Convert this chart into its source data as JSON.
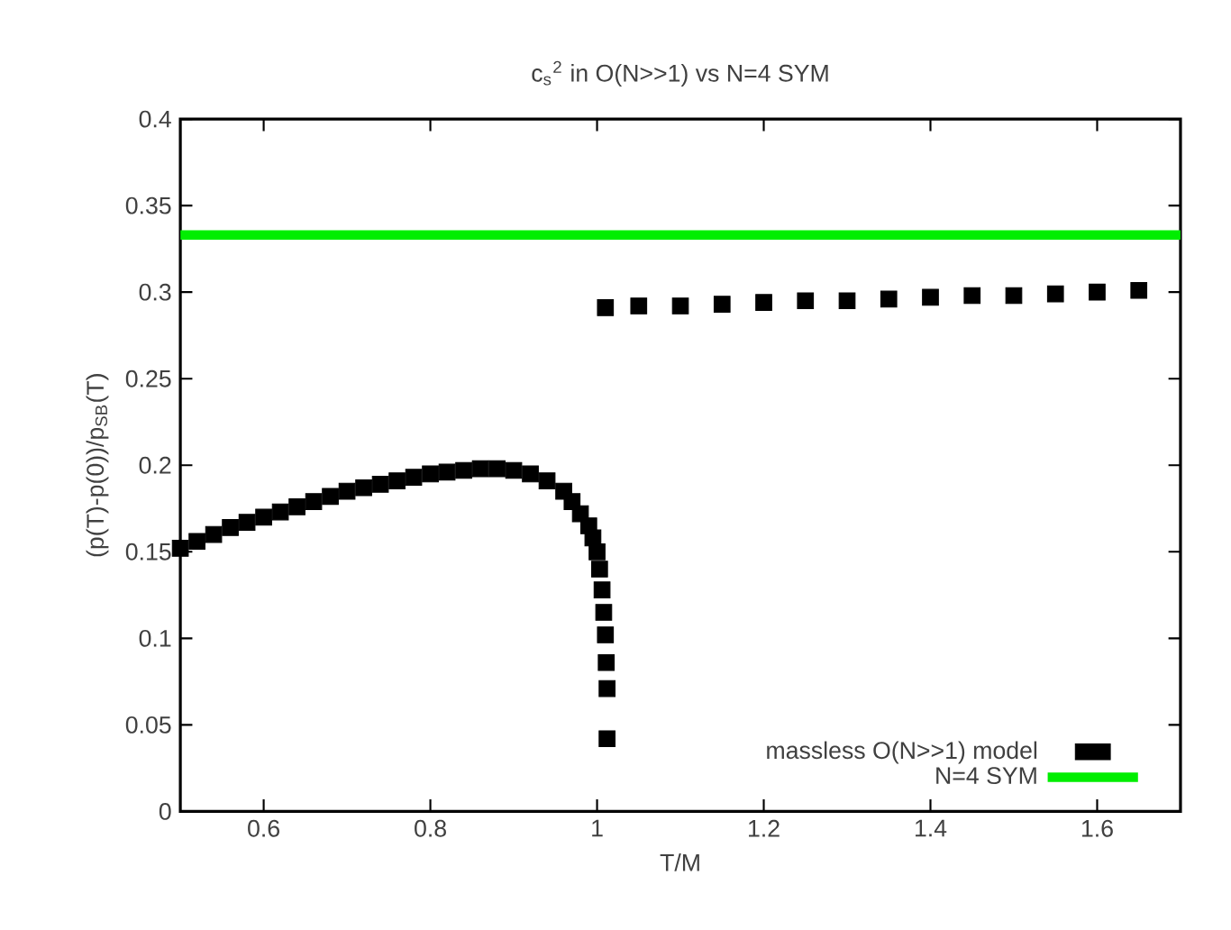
{
  "chart_data": {
    "type": "scatter",
    "title": "c$_{s}$$^{2}$ in O(N>>1) vs N=4 SYM",
    "xlabel": "T/M",
    "ylabel": "(p(T)-p(0))/p$_{SB}$(T)",
    "xlim": [
      0.5,
      1.7
    ],
    "ylim": [
      0,
      0.4
    ],
    "xticks": [
      0.6,
      0.8,
      1,
      1.2,
      1.4,
      1.6
    ],
    "yticks": [
      0,
      0.05,
      0.1,
      0.15,
      0.2,
      0.25,
      0.3,
      0.35,
      0.4
    ],
    "legend": "bottom right",
    "series": [
      {
        "name": "massless O(N>>1) model",
        "marker": "square",
        "color": "#000000",
        "x": [
          0.5,
          0.52,
          0.54,
          0.56,
          0.58,
          0.6,
          0.62,
          0.64,
          0.66,
          0.68,
          0.7,
          0.72,
          0.74,
          0.76,
          0.78,
          0.8,
          0.82,
          0.84,
          0.86,
          0.88,
          0.9,
          0.92,
          0.94,
          0.96,
          0.97,
          0.98,
          0.99,
          0.995,
          1.0,
          1.003,
          1.006,
          1.008,
          1.01,
          1.011,
          1.012,
          1.012,
          1.01,
          1.05,
          1.1,
          1.15,
          1.2,
          1.25,
          1.3,
          1.35,
          1.4,
          1.45,
          1.5,
          1.55,
          1.6,
          1.65
        ],
        "values": [
          0.152,
          0.156,
          0.16,
          0.164,
          0.167,
          0.17,
          0.173,
          0.176,
          0.179,
          0.182,
          0.185,
          0.187,
          0.189,
          0.191,
          0.193,
          0.195,
          0.196,
          0.197,
          0.198,
          0.198,
          0.197,
          0.195,
          0.191,
          0.185,
          0.179,
          0.172,
          0.165,
          0.158,
          0.15,
          0.14,
          0.128,
          0.115,
          0.102,
          0.086,
          0.071,
          0.042,
          0.291,
          0.292,
          0.292,
          0.293,
          0.294,
          0.295,
          0.295,
          0.296,
          0.297,
          0.298,
          0.298,
          0.299,
          0.3,
          0.301
        ]
      },
      {
        "name": "N=4 SYM",
        "type": "line",
        "color": "#00ee00",
        "x": [
          0.5,
          1.7
        ],
        "values": [
          0.333,
          0.333
        ]
      }
    ]
  }
}
